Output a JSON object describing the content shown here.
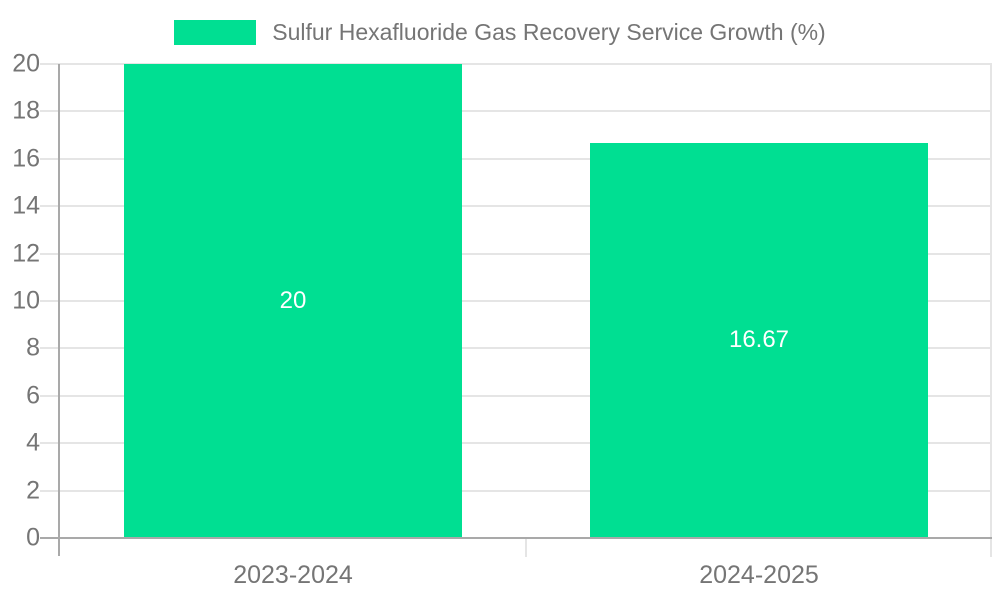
{
  "chart_data": {
    "type": "bar",
    "title": "Sulfur Hexafluoride Gas Recovery Service Growth (%)",
    "categories": [
      "2023-2024",
      "2024-2025"
    ],
    "values": [
      20,
      16.67
    ],
    "bar_labels": [
      "20",
      "16.67"
    ],
    "xlabel": "",
    "ylabel": "",
    "ylim": [
      0,
      20
    ],
    "ytick_step": 2,
    "yticks": [
      0,
      2,
      4,
      6,
      8,
      10,
      12,
      14,
      16,
      18,
      20
    ],
    "grid": true,
    "legend_position": "top-center",
    "legend_entries": [
      "Sulfur Hexafluoride Gas Recovery Service Growth (%)"
    ],
    "colors": {
      "bar": "#00DF92",
      "label_text": "#ffffff",
      "axis_line": "#a9a9a9",
      "gridline": "#e5e5e5",
      "tick_text": "#757575",
      "legend_text": "#757575",
      "background": "#ffffff"
    }
  }
}
